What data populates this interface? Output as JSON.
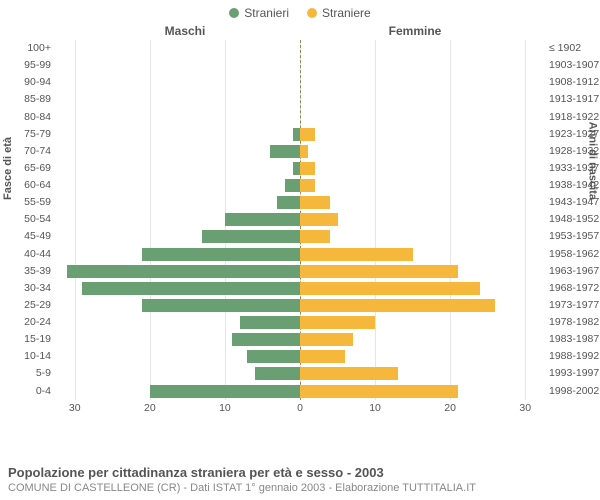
{
  "legend": {
    "male": {
      "label": "Stranieri",
      "color": "#6a9e73"
    },
    "female": {
      "label": "Straniere",
      "color": "#f5b83d"
    }
  },
  "headers": {
    "male": "Maschi",
    "female": "Femmine"
  },
  "axis_titles": {
    "left": "Fasce di età",
    "right": "Anni di nascita"
  },
  "chart": {
    "type": "population-pyramid",
    "xmax": 32.5,
    "xticks_left": [
      30,
      20,
      10,
      0
    ],
    "xticks_right": [
      10,
      20,
      30
    ],
    "background_color": "#ffffff",
    "grid_color": "#e6e6e6",
    "centerline_color": "#8a8a56",
    "tick_color": "#555555",
    "age_groups": [
      {
        "age": "100+",
        "birth": "≤ 1902",
        "m": 0,
        "f": 0
      },
      {
        "age": "95-99",
        "birth": "1903-1907",
        "m": 0,
        "f": 0
      },
      {
        "age": "90-94",
        "birth": "1908-1912",
        "m": 0,
        "f": 0
      },
      {
        "age": "85-89",
        "birth": "1913-1917",
        "m": 0,
        "f": 0
      },
      {
        "age": "80-84",
        "birth": "1918-1922",
        "m": 0,
        "f": 0
      },
      {
        "age": "75-79",
        "birth": "1923-1927",
        "m": 1,
        "f": 2
      },
      {
        "age": "70-74",
        "birth": "1928-1932",
        "m": 4,
        "f": 1
      },
      {
        "age": "65-69",
        "birth": "1933-1937",
        "m": 1,
        "f": 2
      },
      {
        "age": "60-64",
        "birth": "1938-1942",
        "m": 2,
        "f": 2
      },
      {
        "age": "55-59",
        "birth": "1943-1947",
        "m": 3,
        "f": 4
      },
      {
        "age": "50-54",
        "birth": "1948-1952",
        "m": 10,
        "f": 5
      },
      {
        "age": "45-49",
        "birth": "1953-1957",
        "m": 13,
        "f": 4
      },
      {
        "age": "40-44",
        "birth": "1958-1962",
        "m": 21,
        "f": 15
      },
      {
        "age": "35-39",
        "birth": "1963-1967",
        "m": 31,
        "f": 21
      },
      {
        "age": "30-34",
        "birth": "1968-1972",
        "m": 29,
        "f": 24
      },
      {
        "age": "25-29",
        "birth": "1973-1977",
        "m": 21,
        "f": 26
      },
      {
        "age": "20-24",
        "birth": "1978-1982",
        "m": 8,
        "f": 10
      },
      {
        "age": "15-19",
        "birth": "1983-1987",
        "m": 9,
        "f": 7
      },
      {
        "age": "10-14",
        "birth": "1988-1992",
        "m": 7,
        "f": 6
      },
      {
        "age": "5-9",
        "birth": "1993-1997",
        "m": 6,
        "f": 13
      },
      {
        "age": "0-4",
        "birth": "1998-2002",
        "m": 20,
        "f": 21
      }
    ]
  },
  "footer": {
    "title": "Popolazione per cittadinanza straniera per età e sesso - 2003",
    "subtitle": "COMUNE DI CASTELLEONE (CR) - Dati ISTAT 1° gennaio 2003 - Elaborazione TUTTITALIA.IT"
  }
}
